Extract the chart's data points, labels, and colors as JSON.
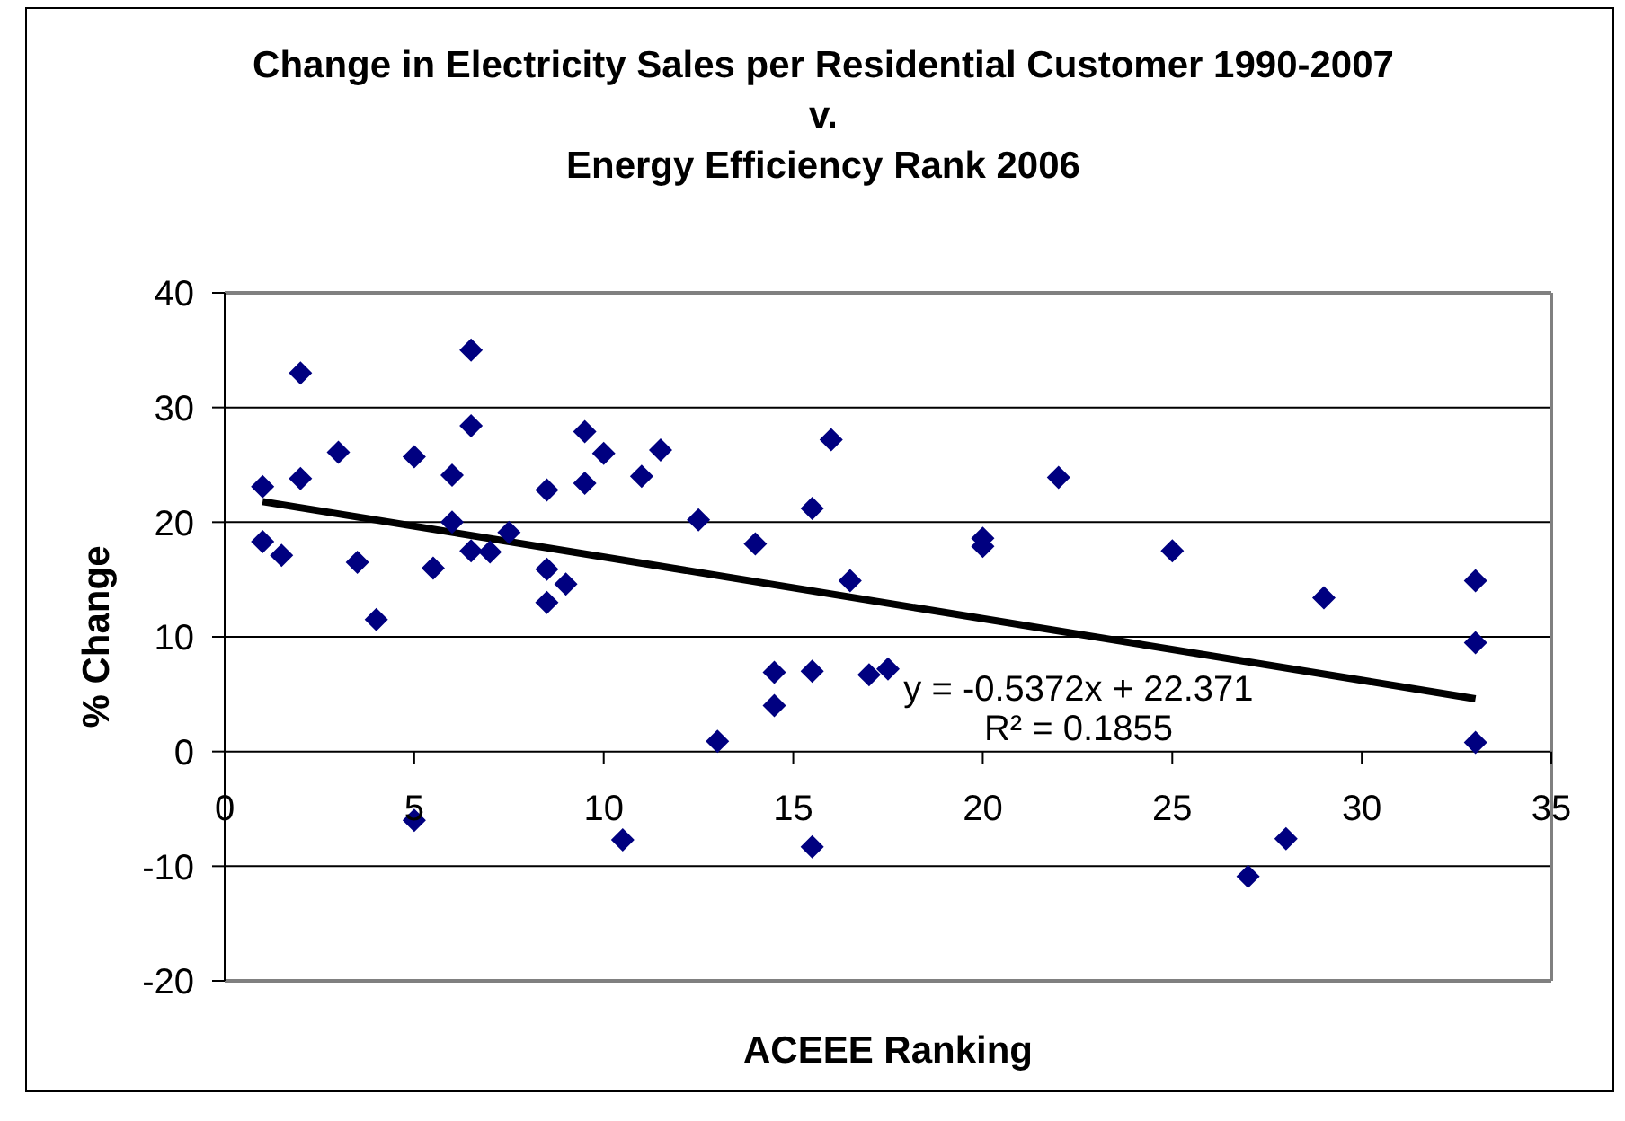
{
  "chart_data": {
    "type": "scatter",
    "title": "Change in Electricity Sales per Residential Customer 1990-2007\nv.\nEnergy Efficiency Rank 2006",
    "xlabel": "ACEEE Ranking",
    "ylabel": "% Change",
    "xlim": [
      0,
      35
    ],
    "xticks": [
      0,
      5,
      10,
      15,
      20,
      25,
      30,
      35
    ],
    "ylim": [
      -20,
      40
    ],
    "yticks": [
      -20,
      -10,
      0,
      10,
      20,
      30,
      40
    ],
    "grid": "y",
    "series": [
      {
        "color": "#000080",
        "marker": "diamond",
        "x": [
          1,
          1,
          1.5,
          2,
          2,
          3,
          3.5,
          4,
          5,
          5,
          5.5,
          6,
          6,
          6.5,
          6.5,
          6.5,
          7,
          7.5,
          8.5,
          8.5,
          8.5,
          9,
          9.5,
          9.5,
          10,
          10.5,
          11,
          11.5,
          12.5,
          13,
          14,
          14.5,
          14.5,
          15.5,
          15.5,
          15.5,
          16,
          16.5,
          17,
          17.5,
          20,
          20,
          22,
          25,
          27,
          28,
          29,
          33,
          33,
          33
        ],
        "values": [
          23.1,
          18.3,
          17.1,
          33.0,
          23.8,
          26.1,
          16.5,
          11.5,
          25.7,
          -6.0,
          16.0,
          24.1,
          20.0,
          35.0,
          28.4,
          17.5,
          17.4,
          19.1,
          22.8,
          15.9,
          13.0,
          14.6,
          27.9,
          23.4,
          26.0,
          -7.7,
          24.0,
          26.3,
          20.2,
          0.9,
          18.1,
          6.9,
          4.0,
          21.2,
          7.0,
          -8.3,
          27.2,
          14.9,
          6.7,
          7.2,
          18.6,
          17.9,
          23.9,
          17.5,
          -10.9,
          -7.6,
          13.4,
          14.9,
          9.5,
          0.8
        ]
      },
      {
        "type": "line",
        "color": "#000000",
        "marker": "none",
        "x": [
          1,
          33
        ],
        "values": [
          21.8,
          4.6
        ]
      }
    ],
    "annotations": [
      "y = -0.5372x + 22.371",
      "R² = 0.1855"
    ]
  }
}
